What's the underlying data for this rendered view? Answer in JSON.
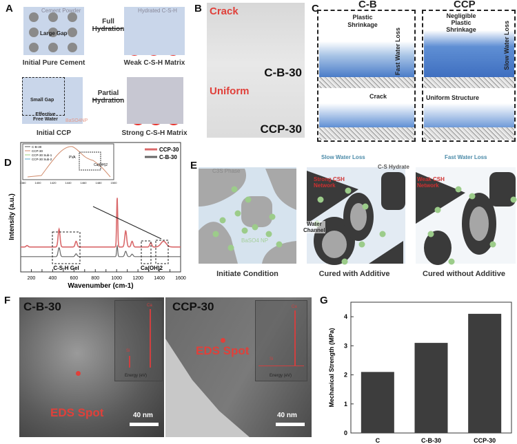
{
  "panels": {
    "a": "A",
    "b": "B",
    "c": "C",
    "d": "D",
    "e": "E",
    "f": "F",
    "g": "G"
  },
  "panel_a": {
    "cement_powder": "Cement Powder",
    "large_gap": "Large Gap",
    "full_hydration_1": "Full",
    "full_hydration_2": "Hydration",
    "hydrated_csh": "Hydrated C-S-H",
    "initial_pure_cement": "Initial Pure Cement",
    "weak_matrix": "Weak C-S-H Matrix",
    "small_gap": "Small Gap",
    "effective": "Effective",
    "free_water": "Free Water",
    "baso4": "BaSO4NP",
    "partial_1": "Partial",
    "partial_2": "Hydration",
    "initial_ccp": "Initial CCP",
    "strong_matrix": "Strong C-S-H Matrix"
  },
  "panel_b": {
    "crack": "Crack",
    "cb30": "C-B-30",
    "uniform": "Uniform",
    "ccp30": "CCP-30"
  },
  "panel_c": {
    "cb_title": "C-B",
    "ccp_title": "CCP",
    "plastic_shrinkage": "Plastic Shrinkage",
    "fast_water_loss": "Fast Water Loss",
    "negligible": "Negligible Plastic Shrinkage",
    "slow_water_loss": "Slow Water Loss",
    "crack": "Crack",
    "uniform_structure": "Uniform Structure"
  },
  "panel_e": {
    "water": "Water",
    "c3s": "C3S Phase",
    "baso4": "BaSO4 NP",
    "slow_loss": "Slow Water Loss",
    "cs_hydrate": "C-S Hydrate",
    "strong_csh": "Strong CSH Network",
    "water_channel_1": "Water",
    "water_channel_2": "Channel",
    "fast_loss": "Fast Water Loss",
    "weak_csh": "Weak CSH Network",
    "cap1": "Initiate Condition",
    "cap2": "Cured with Additive",
    "cap3": "Cured without Additive"
  },
  "panel_f": {
    "left_title": "C-B-30",
    "right_title": "CCP-30",
    "eds": "EDS Spot",
    "scale": "40 nm",
    "inset_ylabel": "Intensity (a.u.)",
    "inset_xlabel": "Energy (eV)",
    "si": "Si",
    "ca": "Ca"
  },
  "chart_data": [
    {
      "type": "line",
      "title": "",
      "xlabel": "Wavenumber (cm-1)",
      "ylabel": "Intensity (a.u.)",
      "xlim": [
        100,
        1600
      ],
      "xticks": [
        200,
        300,
        400,
        500,
        600,
        700,
        800,
        900,
        1000,
        1100,
        1200,
        1300,
        1400,
        1500,
        1600
      ],
      "series": [
        {
          "name": "CCP-30",
          "color": "#d9686a",
          "offset": 0.35,
          "peaks": [
            [
              160,
              0.04
            ],
            [
              460,
              0.5
            ],
            [
              620,
              0.16
            ],
            [
              1005,
              1.4
            ],
            [
              1085,
              0.45
            ],
            [
              1145,
              0.16
            ],
            [
              1320,
              0.12
            ],
            [
              1440,
              0.16
            ]
          ]
        },
        {
          "name": "C-B-30",
          "color": "#666666",
          "offset": 0.08,
          "peaks": [
            [
              460,
              0.25
            ],
            [
              620,
              0.08
            ],
            [
              1005,
              0.3
            ],
            [
              1085,
              0.15
            ],
            [
              1145,
              0.07
            ]
          ]
        }
      ],
      "annotations": [
        "C-S-H Gel",
        "Ca(OH)2"
      ],
      "inset": {
        "xlim": [
          1380,
          1500
        ],
        "xticks": [
          1380,
          1400,
          1420,
          1440,
          1460,
          1480,
          1500
        ],
        "legend": [
          "C-B-30",
          "CCP-30",
          "CCP-30 Sub-1",
          "CCP-30 Sub-2"
        ],
        "labels": [
          "PVA",
          "Ca(OH)2"
        ]
      },
      "legend": "top-right"
    },
    {
      "type": "bar",
      "title": "",
      "xlabel": "",
      "ylabel": "Mechanical Strength (MPa)",
      "categories": [
        "C",
        "C-B-30",
        "CCP-30"
      ],
      "values": [
        2.1,
        3.1,
        4.1
      ],
      "ylim": [
        0,
        4.5
      ],
      "yticks": [
        0,
        1,
        2,
        3,
        4
      ],
      "color": "#3d3d3d"
    }
  ]
}
